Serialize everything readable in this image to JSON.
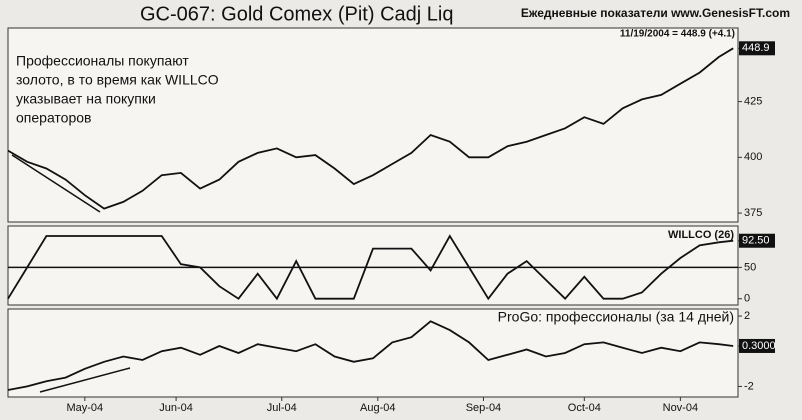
{
  "chart_data": [
    {
      "type": "line",
      "title": "GC-067:  Gold Comex (Pit) Cadj Liq",
      "subtitle": "Ежедневные показатели www.GenesisFT.com",
      "last_quote": "11/19/2004 = 448.9 (+4.1)",
      "annotation": [
        "Профессионалы покупают",
        "золото, в то время как WILLCO",
        "указывает на покупки",
        "операторов"
      ],
      "x": [
        0,
        4,
        8,
        12,
        16,
        20,
        24,
        28,
        32,
        36,
        40,
        44,
        48,
        52,
        56,
        60,
        64,
        68,
        72,
        76,
        80,
        84,
        88,
        92,
        96,
        100,
        104,
        108,
        112,
        116,
        120,
        124,
        128,
        132,
        136,
        140,
        144,
        148,
        151
      ],
      "xlim": [
        0,
        152
      ],
      "ylim": [
        371,
        458
      ],
      "yticks": [
        375,
        400,
        425,
        448.9
      ],
      "series": [
        {
          "color": "#111111",
          "values": [
            403,
            398,
            395,
            390,
            383,
            377,
            380,
            385,
            392,
            393,
            386,
            390,
            398,
            402,
            404,
            400,
            401,
            395,
            388,
            392,
            397,
            402,
            410,
            407,
            400,
            400,
            405,
            407,
            410,
            413,
            418,
            415,
            422,
            426,
            428,
            433,
            438,
            445,
            448.9
          ]
        }
      ]
    },
    {
      "type": "line",
      "x": [
        0,
        4,
        8,
        12,
        16,
        20,
        24,
        28,
        32,
        36,
        40,
        44,
        48,
        52,
        56,
        60,
        64,
        68,
        72,
        76,
        80,
        84,
        88,
        92,
        96,
        100,
        104,
        108,
        112,
        116,
        120,
        124,
        128,
        132,
        136,
        140,
        144,
        148,
        151
      ],
      "xlim": [
        0,
        152
      ],
      "ylim": [
        -10,
        116
      ],
      "yticks": [
        0,
        50,
        {
          "value": 92.5,
          "label": "92.50"
        }
      ],
      "reference_line": 50,
      "series": [
        {
          "name": "WILLCO (26)",
          "color": "#111111",
          "values": [
            0,
            50,
            100,
            100,
            100,
            100,
            100,
            100,
            100,
            55,
            50,
            20,
            0,
            40,
            0,
            60,
            0,
            0,
            0,
            80,
            80,
            80,
            45,
            100,
            50,
            0,
            40,
            60,
            30,
            0,
            35,
            0,
            0,
            10,
            40,
            65,
            85,
            90,
            92.5
          ]
        }
      ]
    },
    {
      "type": "line",
      "x": [
        0,
        4,
        8,
        12,
        16,
        20,
        24,
        28,
        32,
        36,
        40,
        44,
        48,
        52,
        56,
        60,
        64,
        68,
        72,
        76,
        80,
        84,
        88,
        92,
        96,
        100,
        104,
        108,
        112,
        116,
        120,
        124,
        128,
        132,
        136,
        140,
        144,
        148,
        151
      ],
      "xlim": [
        0,
        152
      ],
      "ylim": [
        -2.6,
        2.4
      ],
      "yticks": [
        2,
        {
          "value": 0.3,
          "label": "0.3000"
        },
        -2
      ],
      "xticks": [
        {
          "value": 16,
          "label": "May-04"
        },
        {
          "value": 35,
          "label": "Jun-04"
        },
        {
          "value": 57,
          "label": "Jul-04"
        },
        {
          "value": 77,
          "label": "Aug-04"
        },
        {
          "value": 99,
          "label": "Sep-04"
        },
        {
          "value": 120,
          "label": "Oct-04"
        },
        {
          "value": 140,
          "label": "Nov-04"
        }
      ],
      "series": [
        {
          "name": "ProGo: профессионалы (за 14 дней)",
          "color": "#111111",
          "values": [
            -2.2,
            -2.0,
            -1.7,
            -1.5,
            -1.0,
            -0.6,
            -0.3,
            -0.5,
            0.0,
            0.2,
            -0.2,
            0.3,
            -0.1,
            0.4,
            0.2,
            0.0,
            0.4,
            -0.3,
            -0.6,
            -0.4,
            0.5,
            0.8,
            1.7,
            1.2,
            0.5,
            -0.5,
            -0.2,
            0.1,
            -0.3,
            -0.1,
            0.4,
            0.5,
            0.2,
            -0.1,
            0.2,
            0.0,
            0.5,
            0.4,
            0.3
          ]
        }
      ]
    }
  ]
}
